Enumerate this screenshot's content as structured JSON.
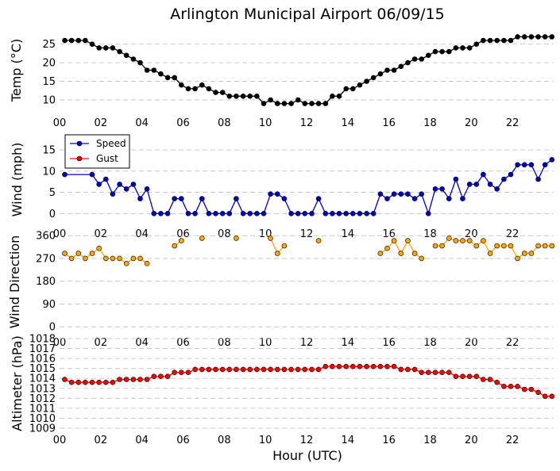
{
  "chart_data": {
    "type": "line",
    "title": "Arlington Municipal Airport 06/09/15",
    "xlabel": "Hour (UTC)",
    "xlim": [
      0,
      24
    ],
    "xticks": [
      "00",
      "02",
      "04",
      "06",
      "08",
      "10",
      "12",
      "14",
      "16",
      "18",
      "20",
      "22"
    ],
    "panels": [
      {
        "id": "temp",
        "ylabel": "Temp (°C)",
        "ylim": [
          7,
          29
        ],
        "yticks": [
          10,
          15,
          20,
          25
        ],
        "series": [
          {
            "name": "Temp",
            "color": "#000000",
            "x": [
              0.25,
              0.583,
              0.917,
              1.25,
              1.583,
              1.917,
              2.25,
              2.583,
              2.917,
              3.25,
              3.583,
              3.917,
              4.25,
              4.583,
              4.917,
              5.25,
              5.583,
              5.917,
              6.25,
              6.583,
              6.917,
              7.25,
              7.583,
              7.917,
              8.25,
              8.583,
              8.917,
              9.25,
              9.583,
              9.917,
              10.25,
              10.583,
              10.917,
              11.25,
              11.583,
              11.917,
              12.25,
              12.583,
              12.917,
              13.25,
              13.583,
              13.917,
              14.25,
              14.583,
              14.917,
              15.25,
              15.583,
              15.917,
              16.25,
              16.583,
              16.917,
              17.25,
              17.583,
              17.917,
              18.25,
              18.583,
              18.917,
              19.25,
              19.583,
              19.917,
              20.25,
              20.583,
              20.917,
              21.25,
              21.583,
              21.917,
              22.25,
              22.583,
              22.917,
              23.25,
              23.583,
              23.917
            ],
            "values": [
              26,
              26,
              26,
              26,
              25,
              24,
              24,
              24,
              23,
              22,
              21,
              20,
              18,
              18,
              17,
              16,
              16,
              14,
              13,
              13,
              14,
              13,
              12,
              12,
              11,
              11,
              11,
              11,
              11,
              9,
              10,
              9,
              9,
              9,
              10,
              9,
              9,
              9,
              9,
              11,
              11,
              13,
              13,
              14,
              15,
              16,
              17,
              18,
              18,
              19,
              20,
              21,
              21,
              22,
              23,
              23,
              23,
              24,
              24,
              24,
              25,
              26,
              26,
              26,
              26,
              26,
              27,
              27,
              27,
              27,
              27,
              27
            ]
          }
        ]
      },
      {
        "id": "wind",
        "ylabel": "Wind (mph)",
        "ylim": [
          -2,
          18
        ],
        "yticks": [
          0,
          5,
          10,
          15
        ],
        "legend": {
          "position": "upper-left",
          "entries": [
            "Speed",
            "Gust"
          ]
        },
        "series": [
          {
            "name": "Speed",
            "color": "#0000cc",
            "x": [
              0.25,
              1.583,
              1.917,
              2.25,
              2.583,
              2.917,
              3.25,
              3.583,
              3.917,
              4.25,
              4.583,
              4.917,
              5.25,
              5.583,
              5.917,
              6.25,
              6.583,
              6.917,
              7.25,
              7.583,
              7.917,
              8.25,
              8.583,
              8.917,
              9.25,
              9.583,
              9.917,
              10.25,
              10.583,
              10.917,
              11.25,
              11.583,
              11.917,
              12.25,
              12.583,
              12.917,
              13.25,
              13.583,
              13.917,
              14.25,
              14.583,
              14.917,
              15.25,
              15.583,
              15.917,
              16.25,
              16.583,
              16.917,
              17.25,
              17.583,
              17.917,
              18.25,
              18.583,
              18.917,
              19.25,
              19.583,
              19.917,
              20.25,
              20.583,
              20.917,
              21.25,
              21.583,
              21.917,
              22.25,
              22.583,
              22.917,
              23.25,
              23.583,
              23.917
            ],
            "values": [
              9.2,
              9.2,
              6.9,
              8.1,
              4.6,
              6.9,
              5.8,
              6.9,
              3.5,
              5.8,
              0,
              0,
              0,
              3.5,
              3.5,
              0,
              0,
              3.5,
              0,
              0,
              0,
              0,
              3.5,
              0,
              0,
              0,
              0,
              4.6,
              4.6,
              3.5,
              0,
              0,
              0,
              0,
              3.5,
              0,
              0,
              0,
              0,
              0,
              0,
              0,
              0,
              4.6,
              3.5,
              4.6,
              4.6,
              4.6,
              3.5,
              4.6,
              0,
              5.8,
              5.8,
              3.5,
              8.1,
              3.5,
              6.9,
              6.9,
              9.2,
              6.9,
              5.8,
              8.1,
              9.2,
              11.5,
              11.5,
              11.5,
              8.1,
              11.5,
              12.7
            ]
          },
          {
            "name": "Gust",
            "color": "#ff0000",
            "x": [],
            "values": []
          }
        ]
      },
      {
        "id": "dir",
        "ylabel": "Wind Direction",
        "ylim": [
          -15,
          370
        ],
        "yticks": [
          0,
          90,
          180,
          270,
          360
        ],
        "series": [
          {
            "name": "Wind Direction",
            "color": "#ffa500",
            "segments": [
              {
                "x": [
                  0.25,
                  0.583,
                  0.917,
                  1.25,
                  1.583,
                  1.917,
                  2.25,
                  2.583,
                  2.917,
                  3.25,
                  3.583,
                  3.917,
                  4.25
                ],
                "values": [
                  290,
                  270,
                  290,
                  270,
                  290,
                  310,
                  270,
                  270,
                  270,
                  250,
                  270,
                  270,
                  250
                ]
              },
              {
                "x": [
                  5.583,
                  5.917
                ],
                "values": [
                  320,
                  340
                ]
              },
              {
                "x": [
                  6.917
                ],
                "values": [
                  350
                ]
              },
              {
                "x": [
                  8.583
                ],
                "values": [
                  350
                ]
              },
              {
                "x": [
                  10.25,
                  10.583,
                  10.917
                ],
                "values": [
                  350,
                  290,
                  320
                ]
              },
              {
                "x": [
                  12.583
                ],
                "values": [
                  340
                ]
              },
              {
                "x": [
                  15.583,
                  15.917,
                  16.25,
                  16.583,
                  16.917,
                  17.25,
                  17.583
                ],
                "values": [
                  290,
                  310,
                  340,
                  290,
                  340,
                  290,
                  270
                ]
              },
              {
                "x": [
                  18.25,
                  18.583,
                  18.917,
                  19.25,
                  19.583,
                  19.917,
                  20.25,
                  20.583,
                  20.917,
                  21.25,
                  21.583,
                  21.917,
                  22.25,
                  22.583,
                  22.917,
                  23.25,
                  23.583,
                  23.917
                ],
                "values": [
                  320,
                  320,
                  350,
                  340,
                  340,
                  340,
                  320,
                  340,
                  290,
                  320,
                  320,
                  320,
                  270,
                  290,
                  290,
                  320,
                  320,
                  320
                ]
              }
            ]
          }
        ]
      },
      {
        "id": "alt",
        "ylabel": "Altimeter (hPa)",
        "ylim": [
          1009,
          1018
        ],
        "yticks": [
          1009,
          1010,
          1011,
          1012,
          1013,
          1014,
          1015,
          1016,
          1017,
          1018
        ],
        "series": [
          {
            "name": "Altimeter",
            "color": "#ff0000",
            "x": [
              0.25,
              0.583,
              0.917,
              1.25,
              1.583,
              1.917,
              2.25,
              2.583,
              2.917,
              3.25,
              3.583,
              3.917,
              4.25,
              4.583,
              4.917,
              5.25,
              5.583,
              5.917,
              6.25,
              6.583,
              6.917,
              7.25,
              7.583,
              7.917,
              8.25,
              8.583,
              8.917,
              9.25,
              9.583,
              9.917,
              10.25,
              10.583,
              10.917,
              11.25,
              11.583,
              11.917,
              12.25,
              12.583,
              12.917,
              13.25,
              13.583,
              13.917,
              14.25,
              14.583,
              14.917,
              15.25,
              15.583,
              15.917,
              16.25,
              16.583,
              16.917,
              17.25,
              17.583,
              17.917,
              18.25,
              18.583,
              18.917,
              19.25,
              19.583,
              19.917,
              20.25,
              20.583,
              20.917,
              21.25,
              21.583,
              21.917,
              22.25,
              22.583,
              22.917,
              23.25,
              23.583,
              23.917
            ],
            "values": [
              1013.9,
              1013.6,
              1013.6,
              1013.6,
              1013.6,
              1013.6,
              1013.6,
              1013.6,
              1013.9,
              1013.9,
              1013.9,
              1013.9,
              1013.9,
              1014.2,
              1014.2,
              1014.2,
              1014.6,
              1014.6,
              1014.6,
              1014.9,
              1014.9,
              1014.9,
              1014.9,
              1014.9,
              1014.9,
              1014.9,
              1014.9,
              1014.9,
              1014.9,
              1014.9,
              1014.9,
              1014.9,
              1014.9,
              1014.9,
              1014.9,
              1014.9,
              1014.9,
              1014.9,
              1015.2,
              1015.2,
              1015.2,
              1015.2,
              1015.2,
              1015.2,
              1015.2,
              1015.2,
              1015.2,
              1015.2,
              1015.2,
              1014.9,
              1014.9,
              1014.9,
              1014.6,
              1014.6,
              1014.6,
              1014.6,
              1014.6,
              1014.2,
              1014.2,
              1014.2,
              1014.2,
              1013.9,
              1013.9,
              1013.6,
              1013.2,
              1013.2,
              1013.2,
              1012.9,
              1012.9,
              1012.6,
              1012.2,
              1012.2
            ]
          }
        ]
      }
    ]
  }
}
